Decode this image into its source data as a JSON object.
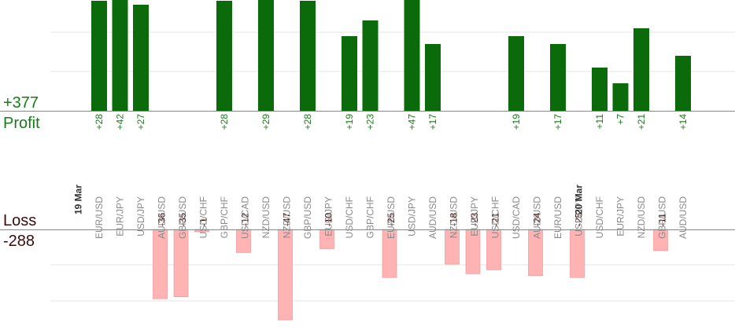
{
  "summary": {
    "profit_total": "+377",
    "profit_label": "Profit",
    "loss_label": "Loss",
    "loss_total": "-288"
  },
  "colors": {
    "profit_bar": "#0b6b0b",
    "loss_bar": "#ffb3b3",
    "profit_text": "#1a7a1a",
    "loss_text": "#3a0a0a",
    "grid": "#e6e6e6",
    "axis": "#888888"
  },
  "chart_data": {
    "type": "bar",
    "categories": [
      "EUR/USD",
      "EUR/JPY",
      "USD/JPY",
      "AUD/USD",
      "GBP/USD",
      "USD/CHF",
      "GBP/CHF",
      "USD/CAD",
      "NZD/USD",
      "NZD/USD",
      "GBP/USD",
      "EUR/JPY",
      "USD/CHF",
      "GBP/CHF",
      "EUR/USD",
      "USD/JPY",
      "AUD/USD",
      "NZD/USD",
      "EUR/JPY",
      "USD/CHF",
      "USD/CAD",
      "AUD/USD",
      "EUR/USD",
      "USD/JPY",
      "USD/CHF",
      "EUR/JPY",
      "NZD/USD",
      "GBP/USD",
      "AUD/USD"
    ],
    "dates": [
      {
        "label": "19 Mar",
        "index": 0
      },
      {
        "label": "20 Mar",
        "index": 24
      }
    ],
    "series": [
      {
        "name": "Profit",
        "values": [
          28,
          42,
          27,
          null,
          null,
          null,
          28,
          null,
          29,
          null,
          28,
          null,
          19,
          23,
          null,
          47,
          17,
          null,
          null,
          null,
          19,
          null,
          17,
          null,
          11,
          7,
          21,
          null,
          14
        ]
      },
      {
        "name": "Loss",
        "values": [
          null,
          null,
          null,
          -36,
          -35,
          -1,
          null,
          -12,
          null,
          -47,
          null,
          -10,
          null,
          null,
          -25,
          null,
          null,
          -18,
          -23,
          -21,
          null,
          -24,
          null,
          -25,
          null,
          null,
          null,
          -11,
          null
        ]
      }
    ],
    "profit_labels": [
      "+28",
      "+42",
      "+27",
      null,
      null,
      null,
      "+28",
      null,
      "+29",
      null,
      "+28",
      null,
      "+19",
      "+23",
      null,
      "+47",
      "+17",
      null,
      null,
      null,
      "+19",
      null,
      "+17",
      null,
      "+11",
      "+7",
      "+21",
      null,
      "+14"
    ],
    "loss_labels": [
      null,
      null,
      null,
      "-36",
      "-35",
      "-1",
      null,
      "-12",
      null,
      "-47",
      null,
      "-10",
      null,
      null,
      "-25",
      null,
      null,
      "-18",
      "-23",
      "-21",
      null,
      "-24",
      null,
      "-25",
      null,
      null,
      null,
      "-11",
      null
    ],
    "grid": true
  }
}
